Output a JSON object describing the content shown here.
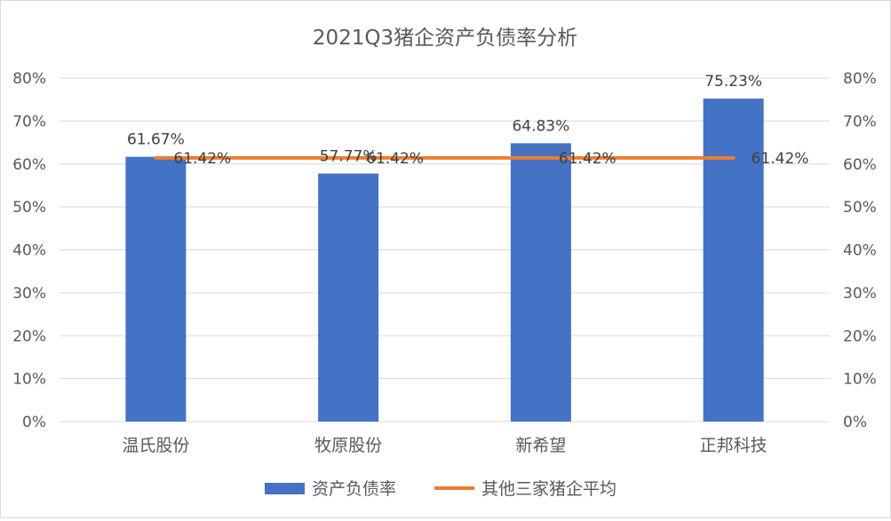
{
  "chart_data": {
    "type": "bar",
    "title": "2021Q3猪企资产负债率分析",
    "categories": [
      "温氏股份",
      "牧原股份",
      "新希望",
      "正邦科技"
    ],
    "series": [
      {
        "name": "资产负债率",
        "kind": "bar",
        "color": "#4472c4",
        "values": [
          61.67,
          57.77,
          64.83,
          75.23
        ],
        "labels": [
          "61.67%",
          "57.77%",
          "64.83%",
          "75.23%"
        ]
      },
      {
        "name": "其他三家猪企平均",
        "kind": "line",
        "color": "#ed7d31",
        "values": [
          61.42,
          61.42,
          61.42,
          61.42
        ],
        "labels": [
          "61.42%",
          "61.42%",
          "61.42%",
          "61.42%"
        ]
      }
    ],
    "ylim": [
      0,
      80
    ],
    "y_ticks": [
      "0%",
      "10%",
      "20%",
      "30%",
      "40%",
      "50%",
      "60%",
      "70%",
      "80%"
    ],
    "y_ticks_right": [
      "0%",
      "10%",
      "20%",
      "30%",
      "40%",
      "50%",
      "60%",
      "70%",
      "80%"
    ],
    "grid": true,
    "legend_position": "bottom"
  }
}
